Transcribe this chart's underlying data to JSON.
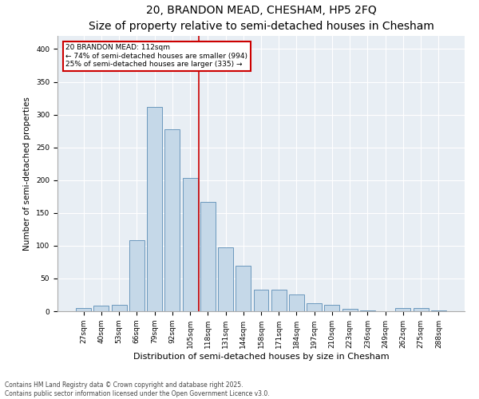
{
  "title": "20, BRANDON MEAD, CHESHAM, HP5 2FQ",
  "subtitle": "Size of property relative to semi-detached houses in Chesham",
  "xlabel": "Distribution of semi-detached houses by size in Chesham",
  "ylabel": "Number of semi-detached properties",
  "categories": [
    "27sqm",
    "40sqm",
    "53sqm",
    "66sqm",
    "79sqm",
    "92sqm",
    "105sqm",
    "118sqm",
    "131sqm",
    "144sqm",
    "158sqm",
    "171sqm",
    "184sqm",
    "197sqm",
    "210sqm",
    "223sqm",
    "236sqm",
    "249sqm",
    "262sqm",
    "275sqm",
    "288sqm"
  ],
  "values": [
    5,
    8,
    10,
    108,
    312,
    277,
    203,
    167,
    97,
    69,
    33,
    33,
    25,
    12,
    10,
    4,
    1,
    0,
    5,
    5,
    1
  ],
  "bar_color": "#c5d8e8",
  "bar_edge_color": "#5a8db5",
  "background_color": "#e8eef4",
  "property_bin_index": 7,
  "annotation_title": "20 BRANDON MEAD: 112sqm",
  "annotation_line1": "← 74% of semi-detached houses are smaller (994)",
  "annotation_line2": "25% of semi-detached houses are larger (335) →",
  "annotation_box_color": "#cc0000",
  "vline_color": "#cc0000",
  "footer_line1": "Contains HM Land Registry data © Crown copyright and database right 2025.",
  "footer_line2": "Contains public sector information licensed under the Open Government Licence v3.0.",
  "ylim": [
    0,
    420
  ],
  "title_fontsize": 10,
  "subtitle_fontsize": 8.5,
  "xlabel_fontsize": 8,
  "ylabel_fontsize": 7.5,
  "tick_fontsize": 6.5,
  "annotation_fontsize": 6.5,
  "footer_fontsize": 5.5
}
